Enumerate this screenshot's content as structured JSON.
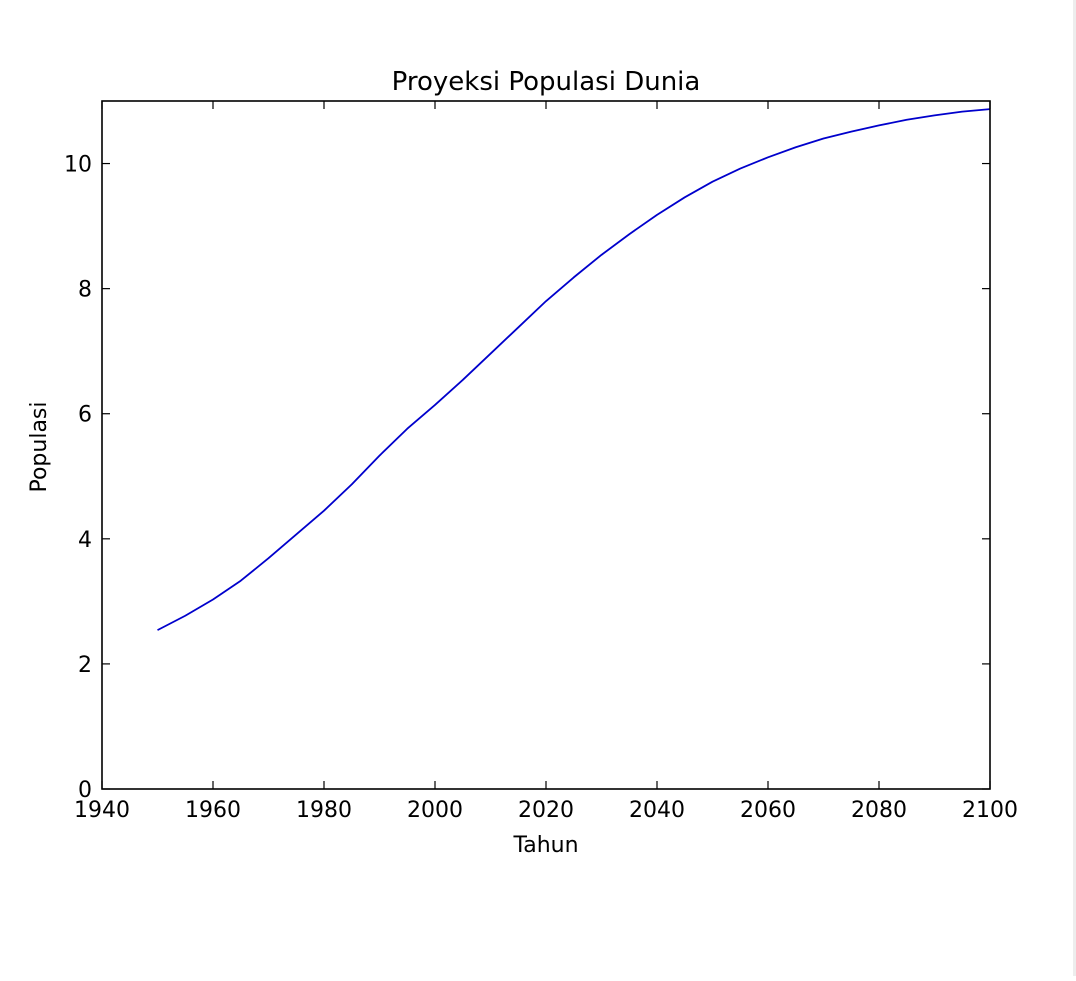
{
  "chart_data": {
    "type": "line",
    "title": "Proyeksi Populasi Dunia",
    "xlabel": "Tahun",
    "ylabel": "Populasi",
    "xlim": [
      1940,
      2100
    ],
    "ylim": [
      0,
      11
    ],
    "xticks": [
      1940,
      1960,
      1980,
      2000,
      2020,
      2040,
      2060,
      2080,
      2100
    ],
    "yticks": [
      0,
      2,
      4,
      6,
      8,
      10
    ],
    "grid": false,
    "series": [
      {
        "color": "#0000cc",
        "x": [
          1950,
          1955,
          1960,
          1965,
          1970,
          1975,
          1980,
          1985,
          1990,
          1995,
          2000,
          2005,
          2010,
          2015,
          2020,
          2025,
          2030,
          2035,
          2040,
          2045,
          2050,
          2055,
          2060,
          2065,
          2070,
          2075,
          2080,
          2085,
          2090,
          2095,
          2100
        ],
        "y": [
          2.54,
          2.77,
          3.03,
          3.33,
          3.69,
          4.07,
          4.45,
          4.87,
          5.33,
          5.76,
          6.14,
          6.54,
          6.96,
          7.38,
          7.8,
          8.18,
          8.54,
          8.87,
          9.18,
          9.46,
          9.71,
          9.92,
          10.1,
          10.26,
          10.4,
          10.51,
          10.61,
          10.7,
          10.77,
          10.83,
          10.87
        ]
      }
    ]
  }
}
